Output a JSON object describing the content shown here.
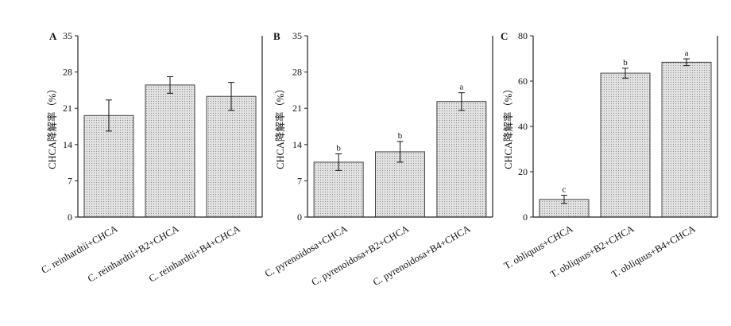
{
  "chart_data": [
    {
      "type": "bar",
      "panel": "A",
      "ylabel": "CHCA降解率（%）",
      "ylim": [
        0,
        35
      ],
      "yticks": [
        "0",
        "7",
        "14",
        "21",
        "28",
        "35"
      ],
      "categories": [
        "C. reinhardtii+CHCA",
        "C. reinhardtii+B2+CHCA",
        "C. reinhardtii+B4+CHCA"
      ],
      "values": [
        19.6,
        25.5,
        23.3
      ],
      "errors": [
        3.0,
        1.6,
        2.7
      ],
      "significance": [
        "",
        "",
        ""
      ]
    },
    {
      "type": "bar",
      "panel": "B",
      "ylabel": "CHCA降解率（%）",
      "ylim": [
        0,
        35
      ],
      "yticks": [
        "0",
        "7",
        "14",
        "21",
        "28",
        "35"
      ],
      "categories": [
        "C. pyrenoidosa+CHCA",
        "C. pyrenoidosa+B2+CHCA",
        "C. pyrenoidosa+B4+CHCA"
      ],
      "values": [
        10.6,
        12.6,
        22.3
      ],
      "errors": [
        1.6,
        2.0,
        1.7
      ],
      "significance": [
        "b",
        "b",
        "a"
      ]
    },
    {
      "type": "bar",
      "panel": "C",
      "ylabel": "CHCA降解率（%）",
      "ylim": [
        0,
        80
      ],
      "yticks": [
        "0",
        "20",
        "40",
        "60",
        "80"
      ],
      "categories": [
        "T. obliquus+CHCA",
        "T. obliquus+B2+CHCA",
        "T. obliquus+B4+CHCA"
      ],
      "values": [
        7.8,
        63.5,
        68.3
      ],
      "errors": [
        1.8,
        2.2,
        1.5
      ],
      "significance": [
        "c",
        "b",
        "a"
      ]
    }
  ],
  "colors": {
    "bar_fill": "#d9d9d9",
    "bar_stroke": "#444444",
    "axis": "#222222"
  }
}
